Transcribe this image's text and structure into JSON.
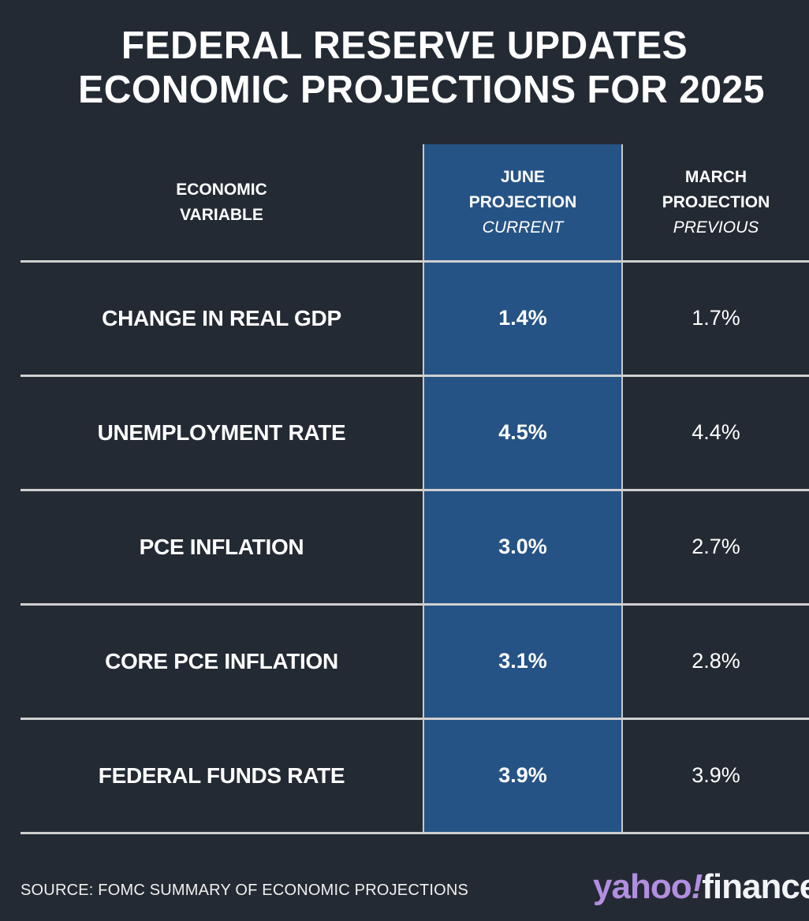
{
  "title": {
    "line1": "FEDERAL RESERVE UPDATES",
    "line2": "ECONOMIC PROJECTIONS FOR 2025"
  },
  "colors": {
    "background": "#242a33",
    "highlight_column": "#265385",
    "rule": "#d0d0d0",
    "logo_yahoo": "#b28ee0",
    "logo_finance": "#f2f4f7"
  },
  "chart_data": {
    "type": "table",
    "title": "FEDERAL RESERVE UPDATES ECONOMIC PROJECTIONS FOR 2025",
    "columns": [
      {
        "line1": "ECONOMIC",
        "line2": "VARIABLE",
        "sub": ""
      },
      {
        "line1": "JUNE",
        "line2": "PROJECTION",
        "sub": "CURRENT"
      },
      {
        "line1": "MARCH",
        "line2": "PROJECTION",
        "sub": "PREVIOUS"
      }
    ],
    "rows": [
      {
        "variable": "CHANGE IN REAL GDP",
        "june": "1.4%",
        "march": "1.7%"
      },
      {
        "variable": "UNEMPLOYMENT RATE",
        "june": "4.5%",
        "march": "4.4%"
      },
      {
        "variable": "PCE INFLATION",
        "june": "3.0%",
        "march": "2.7%"
      },
      {
        "variable": "CORE PCE INFLATION",
        "june": "3.1%",
        "march": "2.8%"
      },
      {
        "variable": "FEDERAL FUNDS RATE",
        "june": "3.9%",
        "march": "3.9%"
      }
    ],
    "values": {
      "june": [
        1.4,
        4.5,
        3.0,
        3.1,
        3.9
      ],
      "march": [
        1.7,
        4.4,
        2.7,
        2.8,
        3.9
      ]
    },
    "units": "%"
  },
  "footer": {
    "source": "SOURCE: FOMC SUMMARY OF ECONOMIC PROJECTIONS",
    "logo_yahoo": "yahoo",
    "logo_bang": "!",
    "logo_finance": "finance"
  }
}
